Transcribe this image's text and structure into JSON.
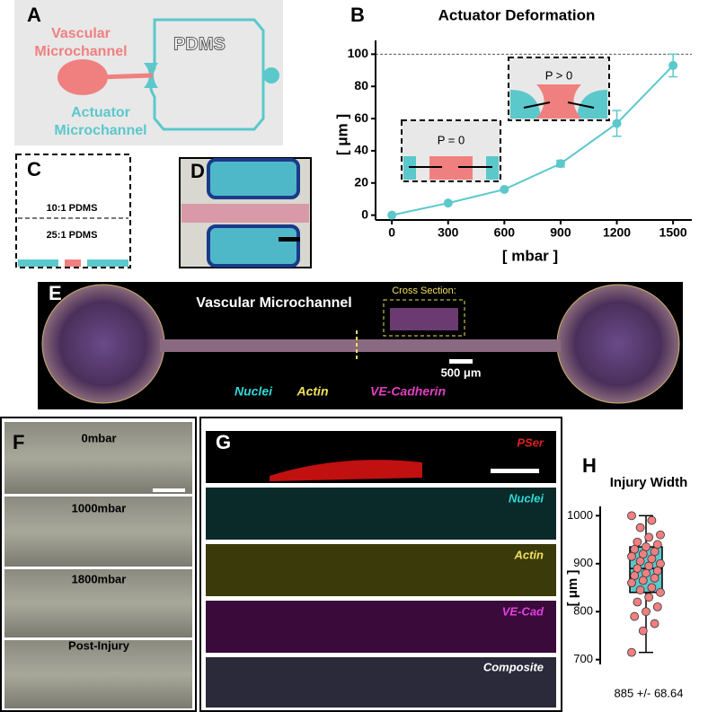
{
  "panels": {
    "A": {
      "label": "A",
      "vascular": [
        "Vascular",
        "Microchannel"
      ],
      "pdms": "PDMS",
      "actuator": [
        "Actuator",
        "Microchannel"
      ]
    },
    "C": {
      "label": "C",
      "top_layer": "10:1 PDMS",
      "bottom_layer": "25:1 PDMS"
    },
    "D": {
      "label": "D"
    },
    "E": {
      "label": "E",
      "title": "Vascular Microchannel",
      "inset": "Cross Section:",
      "scale": "500 μm",
      "stains": [
        "Nuclei",
        "Actin",
        "VE-Cadherin"
      ]
    },
    "F": {
      "label": "F",
      "frames": [
        "0mbar",
        "1000mbar",
        "1800mbar",
        "Post-Injury"
      ]
    },
    "G": {
      "label": "G",
      "channels": [
        "PSer",
        "Nuclei",
        "Actin",
        "VE-Cad",
        "Composite"
      ]
    }
  },
  "chart_data": [
    {
      "type": "line",
      "label": "B",
      "title": "Actuator Deformation",
      "xlabel": "[ mbar ]",
      "ylabel": "[ μm ]",
      "x": [
        0,
        300,
        600,
        900,
        1200,
        1500
      ],
      "values": [
        0,
        7.5,
        16,
        32,
        57,
        93
      ],
      "errors": [
        0,
        0,
        0,
        2,
        8,
        7
      ],
      "color": "#5bc8cc",
      "xlim": [
        -87,
        1600
      ],
      "ylim": [
        -3,
        103
      ],
      "xticks": [
        0,
        300,
        600,
        900,
        1200,
        1500
      ],
      "yticks": [
        0,
        20,
        40,
        60,
        80,
        100
      ],
      "ref_line": 100,
      "insets": [
        "P = 0",
        "P > 0"
      ]
    },
    {
      "type": "box",
      "label": "H",
      "title": "Injury Width",
      "ylabel": "[ μm ]",
      "box": {
        "min": 715,
        "q1": 840,
        "median": 890,
        "q3": 935,
        "max": 1000
      },
      "points": [
        1000,
        990,
        975,
        960,
        955,
        945,
        940,
        935,
        930,
        925,
        920,
        915,
        910,
        905,
        900,
        895,
        890,
        885,
        880,
        875,
        870,
        865,
        860,
        850,
        845,
        840,
        830,
        820,
        810,
        800,
        790,
        775,
        760,
        715
      ],
      "color": "#5bc8cc",
      "point_color": "#f08080",
      "ylim": [
        690,
        1010
      ],
      "yticks": [
        700,
        800,
        900,
        1000
      ],
      "annotation": "885 +/- 68.64"
    }
  ]
}
